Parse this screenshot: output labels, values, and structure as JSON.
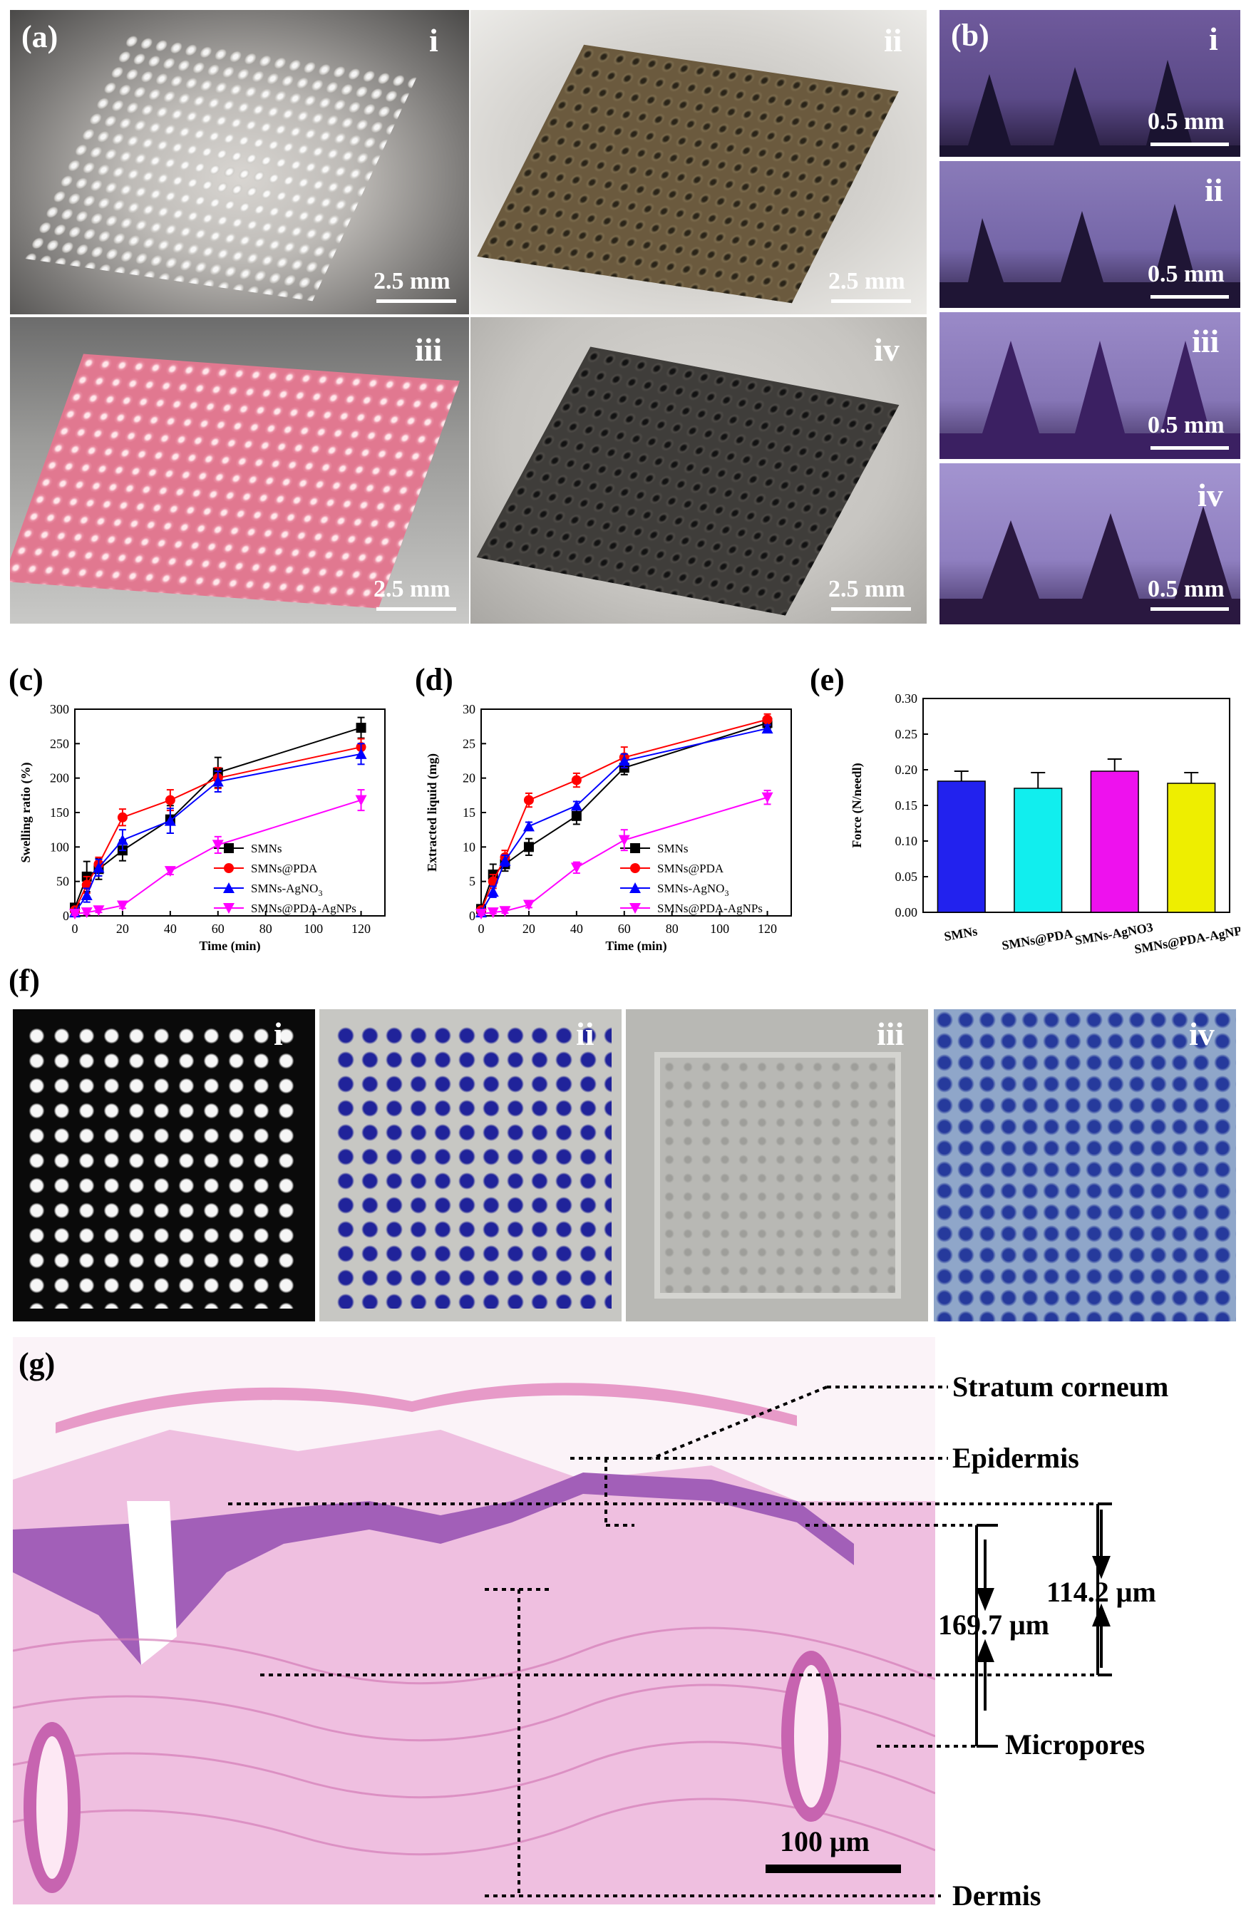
{
  "panels": {
    "a": {
      "letter": "(a)",
      "items": [
        {
          "roman": "i",
          "scale": "2.5 mm",
          "tint": "#bdbdbd"
        },
        {
          "roman": "ii",
          "scale": "2.5 mm",
          "tint": "#6b5a3e"
        },
        {
          "roman": "iii",
          "scale": "2.5 mm",
          "tint": "#e17890"
        },
        {
          "roman": "iv",
          "scale": "2.5 mm",
          "tint": "#3f3d3a"
        }
      ]
    },
    "b": {
      "letter": "(b)",
      "items": [
        {
          "roman": "i",
          "scale": "0.5 mm"
        },
        {
          "roman": "ii",
          "scale": "0.5 mm"
        },
        {
          "roman": "iii",
          "scale": "0.5 mm"
        },
        {
          "roman": "iv",
          "scale": "0.5 mm"
        }
      ]
    },
    "c": {
      "letter": "(c)"
    },
    "d": {
      "letter": "(d)"
    },
    "e": {
      "letter": "(e)"
    },
    "f": {
      "letter": "(f)",
      "items": [
        {
          "roman": "i"
        },
        {
          "roman": "ii"
        },
        {
          "roman": "iii"
        },
        {
          "roman": "iv"
        }
      ]
    },
    "g": {
      "letter": "(g)",
      "labels": {
        "stratum": "Stratum corneum",
        "epidermis": "Epidermis",
        "micropores": "Micropores",
        "dermis": "Dermis",
        "depth1": "114.2 μm",
        "depth2": "169.7 μm",
        "scale": "100 μm"
      }
    }
  },
  "chart_data": [
    {
      "id": "c",
      "type": "line",
      "xlabel": "Time (min)",
      "ylabel": "Swelling ratio (%)",
      "xlim": [
        0,
        130
      ],
      "ylim": [
        0,
        300
      ],
      "xticks": [
        0,
        20,
        40,
        60,
        80,
        100,
        120
      ],
      "yticks": [
        0,
        50,
        100,
        150,
        200,
        250,
        300
      ],
      "x": [
        0,
        5,
        10,
        20,
        40,
        60,
        120
      ],
      "series": [
        {
          "name": "SMNs",
          "color": "#000000",
          "marker": "square",
          "values": [
            12,
            57,
            68,
            95,
            140,
            208,
            273
          ],
          "err": [
            5,
            22,
            15,
            15,
            20,
            22,
            15
          ]
        },
        {
          "name": "SMNs@PDA",
          "color": "#ff0000",
          "marker": "circle",
          "values": [
            8,
            45,
            75,
            143,
            168,
            200,
            245
          ],
          "err": [
            4,
            12,
            10,
            12,
            15,
            15,
            12
          ]
        },
        {
          "name": "SMNs-AgNO3",
          "color": "#0000ff",
          "marker": "triangle-up",
          "values": [
            5,
            30,
            70,
            110,
            138,
            195,
            235
          ],
          "err": [
            3,
            10,
            12,
            15,
            18,
            15,
            15
          ]
        },
        {
          "name": "SMNs@PDA-AgNPs",
          "color": "#ff00ff",
          "marker": "triangle-down",
          "values": [
            3,
            5,
            8,
            15,
            65,
            103,
            168
          ],
          "err": [
            2,
            3,
            3,
            4,
            5,
            12,
            15
          ]
        }
      ]
    },
    {
      "id": "d",
      "type": "line",
      "xlabel": "Time (min)",
      "ylabel": "Extracted liquid (mg)",
      "xlim": [
        0,
        130
      ],
      "ylim": [
        0,
        30
      ],
      "xticks": [
        0,
        20,
        40,
        60,
        80,
        100,
        120
      ],
      "yticks": [
        0,
        5,
        10,
        15,
        20,
        25,
        30
      ],
      "x": [
        0,
        5,
        10,
        20,
        40,
        60,
        120
      ],
      "series": [
        {
          "name": "SMNs",
          "color": "#000000",
          "marker": "square",
          "values": [
            1,
            6,
            7.5,
            10,
            14.5,
            21.5,
            28
          ],
          "err": [
            0.5,
            1.5,
            1,
            1.2,
            1.2,
            1,
            0.8
          ]
        },
        {
          "name": "SMNs@PDA",
          "color": "#ff0000",
          "marker": "circle",
          "values": [
            0.8,
            5,
            8.5,
            16.8,
            19.7,
            23,
            28.5
          ],
          "err": [
            0.4,
            1,
            1,
            1,
            1,
            1.5,
            0.8
          ]
        },
        {
          "name": "SMNs-AgNO3",
          "color": "#0000ff",
          "marker": "triangle-up",
          "values": [
            0.5,
            3.5,
            8,
            13,
            16,
            22.5,
            27.2
          ],
          "err": [
            0.3,
            0.8,
            0.8,
            0.6,
            0.6,
            1,
            0.5
          ]
        },
        {
          "name": "SMNs@PDA-AgNPs",
          "color": "#ff00ff",
          "marker": "triangle-down",
          "values": [
            0.3,
            0.5,
            0.7,
            1.6,
            7,
            11,
            17.2
          ],
          "err": [
            0.2,
            0.2,
            0.3,
            0.4,
            0.8,
            1.5,
            1
          ]
        }
      ]
    },
    {
      "id": "e",
      "type": "bar",
      "ylabel": "Force (N/needl)",
      "ylim": [
        0,
        0.3
      ],
      "yticks": [
        "0.00",
        "0.05",
        "0.10",
        "0.15",
        "0.20",
        "0.25",
        "0.30"
      ],
      "categories": [
        "SMNs",
        "SMNs@PDA",
        "SMNs-AgNO3",
        "SMNs@PDA-AgNPs"
      ],
      "values": [
        0.184,
        0.174,
        0.198,
        0.181
      ],
      "err": [
        0.014,
        0.022,
        0.017,
        0.015
      ],
      "colors": [
        "#2222ee",
        "#11eeee",
        "#ee11ee",
        "#eeee00"
      ]
    }
  ]
}
